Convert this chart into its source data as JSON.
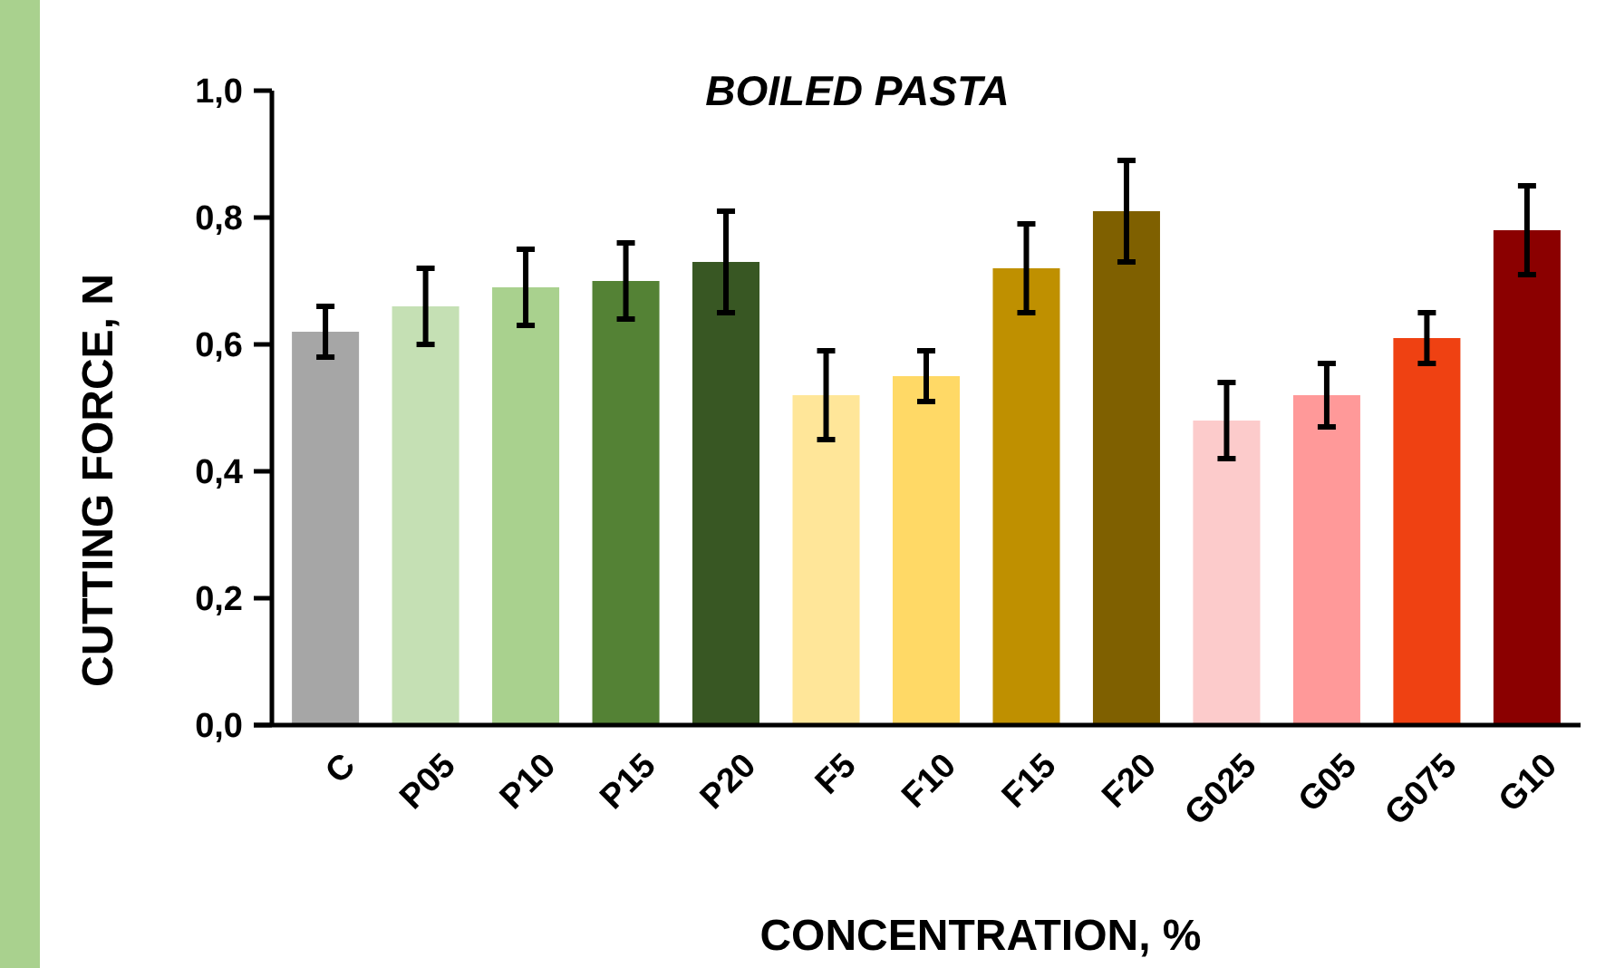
{
  "chart_data": {
    "type": "bar",
    "title": "BOILED PASTA",
    "xlabel": "CONCENTRATION, %",
    "ylabel": "CUTTING FORCE, N",
    "categories": [
      "C",
      "P05",
      "P10",
      "P15",
      "P20",
      "F5",
      "F10",
      "F15",
      "F20",
      "G025",
      "G05",
      "G075",
      "G10"
    ],
    "values": [
      0.62,
      0.66,
      0.69,
      0.7,
      0.73,
      0.52,
      0.55,
      0.72,
      0.81,
      0.48,
      0.52,
      0.61,
      0.78
    ],
    "errors": [
      0.04,
      0.06,
      0.06,
      0.06,
      0.08,
      0.07,
      0.04,
      0.07,
      0.08,
      0.06,
      0.05,
      0.04,
      0.07
    ],
    "colors": [
      "#a6a6a6",
      "#c5e0b4",
      "#a9d18e",
      "#548235",
      "#385723",
      "#ffe699",
      "#ffd966",
      "#bf9000",
      "#7f6000",
      "#fccbcb",
      "#ff9999",
      "#ef4112",
      "#8b0000"
    ],
    "ylim": [
      0,
      1
    ],
    "yticks": [
      {
        "value": 0,
        "label": "0,0"
      },
      {
        "value": 0.2,
        "label": "0,2"
      },
      {
        "value": 0.4,
        "label": "0,4"
      },
      {
        "value": 0.6,
        "label": "0,6"
      },
      {
        "value": 0.8,
        "label": "0,8"
      },
      {
        "value": 1,
        "label": "1,0"
      }
    ],
    "grid": false
  }
}
